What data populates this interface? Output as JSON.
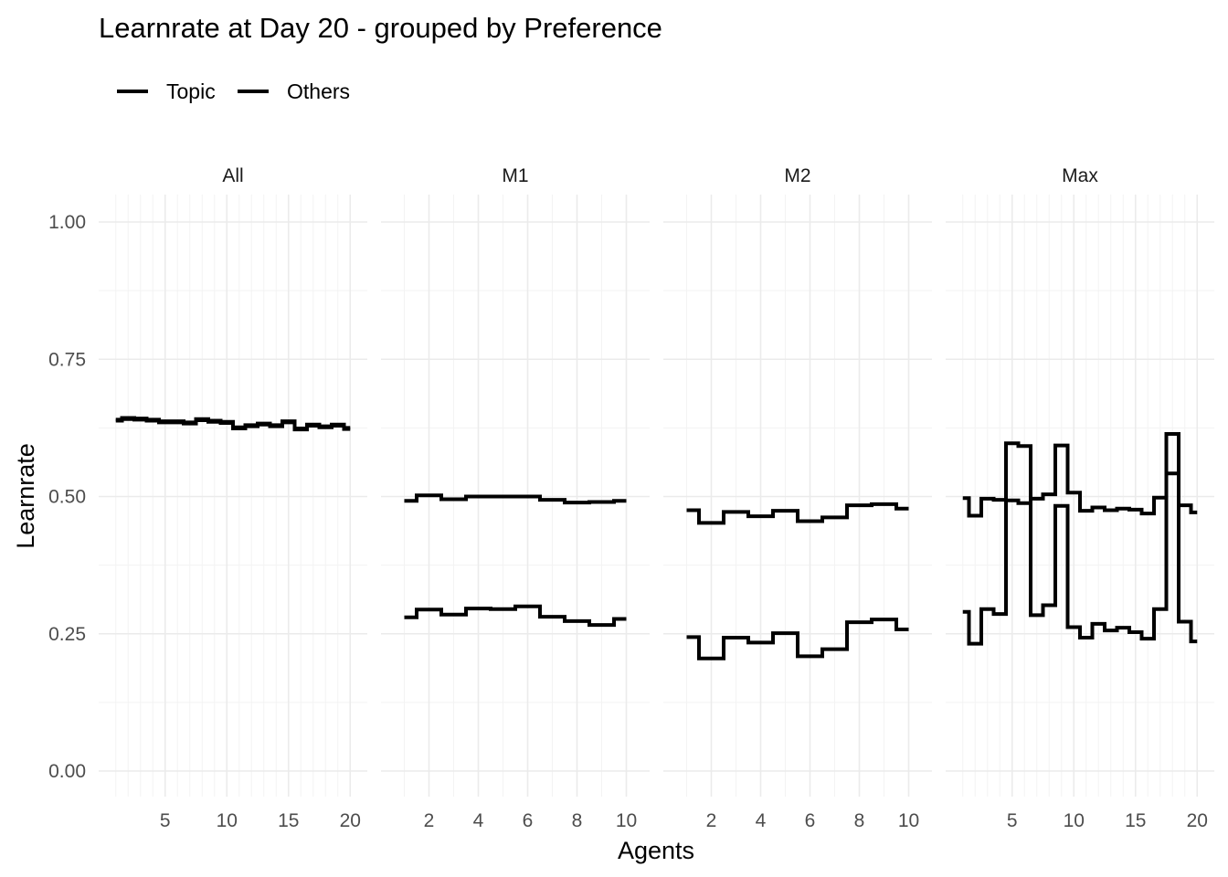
{
  "chart_data": {
    "type": "line",
    "step": true,
    "title": "Learnrate at Day 20 - grouped by Preference",
    "xlabel": "Agents",
    "ylabel": "Learnrate",
    "ylim": [
      0,
      1
    ],
    "y_ticks": [
      0.0,
      0.25,
      0.5,
      0.75,
      1.0
    ],
    "y_tick_labels": [
      "0.00",
      "0.25",
      "0.50",
      "0.75",
      "1.00"
    ],
    "grid": true,
    "legend": {
      "placement": "top-left",
      "entries": [
        "Topic",
        "Others"
      ]
    },
    "series_color": "#000000",
    "facets": [
      {
        "label": "All",
        "xlim": [
          1,
          20
        ],
        "x_ticks": [
          5,
          10,
          15,
          20
        ],
        "series": [
          {
            "name": "Topic",
            "x": [
              1,
              2,
              3,
              4,
              5,
              6,
              7,
              8,
              9,
              10,
              11,
              12,
              13,
              14,
              15,
              16,
              17,
              18,
              19,
              20
            ],
            "values": [
              0.64,
              0.643,
              0.642,
              0.64,
              0.637,
              0.637,
              0.635,
              0.641,
              0.638,
              0.636,
              0.626,
              0.63,
              0.633,
              0.63,
              0.637,
              0.624,
              0.631,
              0.628,
              0.631,
              0.625
            ]
          },
          {
            "name": "Others",
            "x": [
              1,
              2,
              3,
              4,
              5,
              6,
              7,
              8,
              9,
              10,
              11,
              12,
              13,
              14,
              15,
              16,
              17,
              18,
              19,
              20
            ],
            "values": [
              0.638,
              0.641,
              0.64,
              0.638,
              0.635,
              0.635,
              0.633,
              0.639,
              0.636,
              0.634,
              0.624,
              0.628,
              0.631,
              0.628,
              0.635,
              0.622,
              0.629,
              0.626,
              0.629,
              0.623
            ]
          }
        ]
      },
      {
        "label": "M1",
        "xlim": [
          1,
          10
        ],
        "x_ticks": [
          2,
          4,
          6,
          8,
          10
        ],
        "series": [
          {
            "name": "Topic",
            "x": [
              1,
              2,
              3,
              4,
              5,
              6,
              7,
              8,
              9,
              10
            ],
            "values": [
              0.492,
              0.502,
              0.495,
              0.5,
              0.5,
              0.5,
              0.494,
              0.489,
              0.49,
              0.492
            ]
          },
          {
            "name": "Others",
            "x": [
              1,
              2,
              3,
              4,
              5,
              6,
              7,
              8,
              9,
              10
            ],
            "values": [
              0.28,
              0.294,
              0.285,
              0.296,
              0.295,
              0.3,
              0.281,
              0.273,
              0.266,
              0.277
            ]
          }
        ]
      },
      {
        "label": "M2",
        "xlim": [
          1,
          10
        ],
        "x_ticks": [
          2,
          4,
          6,
          8,
          10
        ],
        "series": [
          {
            "name": "Topic",
            "x": [
              1,
              2,
              3,
              4,
              5,
              6,
              7,
              8,
              9,
              10
            ],
            "values": [
              0.475,
              0.452,
              0.472,
              0.464,
              0.474,
              0.455,
              0.462,
              0.484,
              0.486,
              0.478
            ]
          },
          {
            "name": "Others",
            "x": [
              1,
              2,
              3,
              4,
              5,
              6,
              7,
              8,
              9,
              10
            ],
            "values": [
              0.244,
              0.205,
              0.243,
              0.234,
              0.251,
              0.209,
              0.222,
              0.271,
              0.276,
              0.258
            ]
          }
        ]
      },
      {
        "label": "Max",
        "xlim": [
          1,
          20
        ],
        "x_ticks": [
          5,
          10,
          15,
          20
        ],
        "series": [
          {
            "name": "Topic",
            "x": [
              1,
              2,
              3,
              4,
              5,
              6,
              7,
              8,
              9,
              10,
              11,
              12,
              13,
              14,
              15,
              16,
              17,
              18,
              19,
              20
            ],
            "values": [
              0.497,
              0.465,
              0.496,
              0.494,
              0.493,
              0.488,
              0.496,
              0.504,
              0.593,
              0.507,
              0.474,
              0.48,
              0.475,
              0.478,
              0.476,
              0.469,
              0.498,
              0.542,
              0.484,
              0.471
            ]
          },
          {
            "name": "Others",
            "x": [
              1,
              2,
              3,
              4,
              5,
              6,
              7,
              8,
              9,
              10,
              11,
              12,
              13,
              14,
              15,
              16,
              17,
              18,
              19,
              20
            ],
            "values": [
              0.29,
              0.232,
              0.295,
              0.286,
              0.597,
              0.592,
              0.284,
              0.302,
              0.483,
              0.262,
              0.243,
              0.268,
              0.256,
              0.261,
              0.253,
              0.241,
              0.295,
              0.614,
              0.272,
              0.236
            ]
          }
        ]
      }
    ]
  }
}
